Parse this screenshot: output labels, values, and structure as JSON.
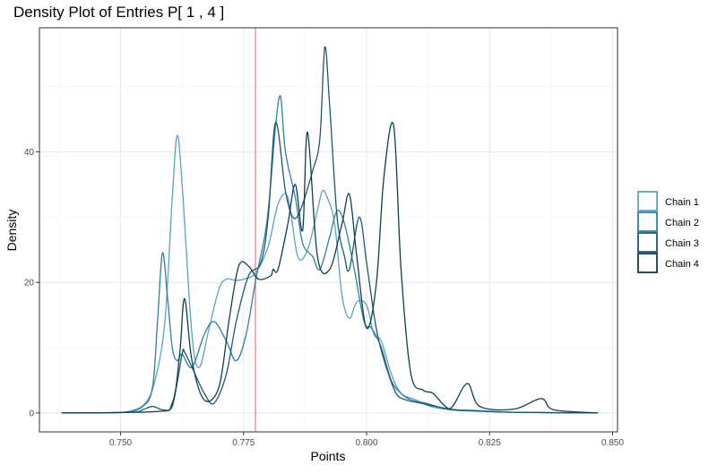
{
  "chart_data": {
    "type": "line",
    "title": "Density Plot of Entries P[ 1 , 4 ]",
    "xlabel": "Points",
    "ylabel": "Density",
    "xlim": [
      0.7335,
      0.851
    ],
    "ylim": [
      -2.9,
      59.0
    ],
    "x_ticks": [
      0.75,
      0.775,
      0.8,
      0.825,
      0.85
    ],
    "x_tick_labels": [
      "0.750",
      "0.775",
      "0.800",
      "0.825",
      "0.850"
    ],
    "y_ticks": [
      0,
      20,
      40
    ],
    "y_tick_labels": [
      "0",
      "20",
      "40"
    ],
    "grid": true,
    "legend_position": "right",
    "reference_line": {
      "x": 0.7774,
      "color": "#F08080"
    },
    "series": [
      {
        "name": "Chain  1",
        "color": "#5BA3C0",
        "x": [
          0.738,
          0.748,
          0.752,
          0.755,
          0.757,
          0.759,
          0.7605,
          0.7615,
          0.7625,
          0.7645,
          0.766,
          0.768,
          0.77,
          0.7715,
          0.7735,
          0.7755,
          0.7775,
          0.78,
          0.782,
          0.784,
          0.786,
          0.788,
          0.79,
          0.791,
          0.792,
          0.7935,
          0.795,
          0.7965,
          0.798,
          0.8,
          0.8015,
          0.803,
          0.805,
          0.807,
          0.81,
          0.813,
          0.817,
          0.822,
          0.83,
          0.847
        ],
        "y": [
          0,
          0.05,
          0.3,
          1.5,
          5,
          14,
          33,
          42.5,
          35,
          12,
          7,
          13,
          19,
          20.5,
          20.3,
          20.6,
          21.5,
          25.5,
          32,
          33,
          24,
          25,
          31,
          34,
          33,
          29,
          18,
          14.5,
          17,
          16.5,
          12,
          11,
          6,
          3,
          2,
          1,
          0.5,
          0.4,
          0.1,
          0
        ]
      },
      {
        "name": "Chain  2",
        "color": "#2E7FA1",
        "x": [
          0.738,
          0.75,
          0.7545,
          0.7565,
          0.7575,
          0.7585,
          0.7595,
          0.7605,
          0.7615,
          0.7625,
          0.7645,
          0.767,
          0.769,
          0.7715,
          0.7735,
          0.7755,
          0.7775,
          0.7795,
          0.7805,
          0.7815,
          0.7825,
          0.7835,
          0.7855,
          0.787,
          0.789,
          0.7905,
          0.7925,
          0.794,
          0.7955,
          0.7975,
          0.7995,
          0.801,
          0.803,
          0.805,
          0.807,
          0.809,
          0.812,
          0.817,
          0.822,
          0.83,
          0.847
        ],
        "y": [
          0,
          0.05,
          1,
          4,
          14,
          24.5,
          18,
          10,
          8,
          9,
          7,
          12,
          14,
          11,
          8,
          12,
          20.5,
          28,
          35,
          44,
          48.5,
          40,
          33,
          26,
          24,
          22,
          27,
          31,
          29,
          22,
          14,
          13,
          10,
          5,
          3,
          2,
          1.5,
          0.5,
          0.3,
          0.1,
          0
        ]
      },
      {
        "name": "Chain  3",
        "color": "#1D5872",
        "x": [
          0.738,
          0.752,
          0.7545,
          0.7565,
          0.7585,
          0.7605,
          0.7625,
          0.763,
          0.7645,
          0.767,
          0.769,
          0.7715,
          0.7735,
          0.776,
          0.7785,
          0.78,
          0.7815,
          0.7835,
          0.785,
          0.7865,
          0.789,
          0.7905,
          0.7915,
          0.7925,
          0.794,
          0.7955,
          0.7965,
          0.7985,
          0.8,
          0.8015,
          0.8025,
          0.804,
          0.806,
          0.808,
          0.811,
          0.814,
          0.818,
          0.823,
          0.83,
          0.847
        ],
        "y": [
          0,
          0.1,
          0.5,
          1,
          0.5,
          1,
          9,
          9.3,
          7,
          3,
          1.5,
          6,
          14,
          21,
          23,
          30,
          44.5,
          34,
          30,
          31,
          37,
          42,
          56,
          47,
          30,
          24,
          22,
          30,
          23,
          15,
          11,
          7,
          3,
          2,
          1.5,
          1,
          0.5,
          0.3,
          0.1,
          0
        ]
      },
      {
        "name": "Chain  4",
        "color": "#0F3E50",
        "x": [
          0.738,
          0.757,
          0.7605,
          0.762,
          0.763,
          0.7645,
          0.767,
          0.77,
          0.772,
          0.774,
          0.776,
          0.778,
          0.7805,
          0.781,
          0.782,
          0.784,
          0.7855,
          0.787,
          0.788,
          0.79,
          0.7925,
          0.795,
          0.7965,
          0.798,
          0.8,
          0.802,
          0.8035,
          0.8055,
          0.807,
          0.809,
          0.8115,
          0.8135,
          0.816,
          0.8175,
          0.8205,
          0.823,
          0.83,
          0.8355,
          0.838,
          0.847
        ],
        "y": [
          0,
          0.2,
          1.5,
          9,
          17.5,
          8,
          2,
          4,
          14,
          22.5,
          22.5,
          20.5,
          21,
          22,
          22,
          29,
          35,
          28,
          43,
          24,
          22,
          29,
          33.5,
          24,
          13,
          20,
          36,
          44,
          22,
          6,
          3.5,
          3,
          1,
          1,
          4.5,
          1,
          0.6,
          2.2,
          0.5,
          0
        ]
      }
    ]
  }
}
